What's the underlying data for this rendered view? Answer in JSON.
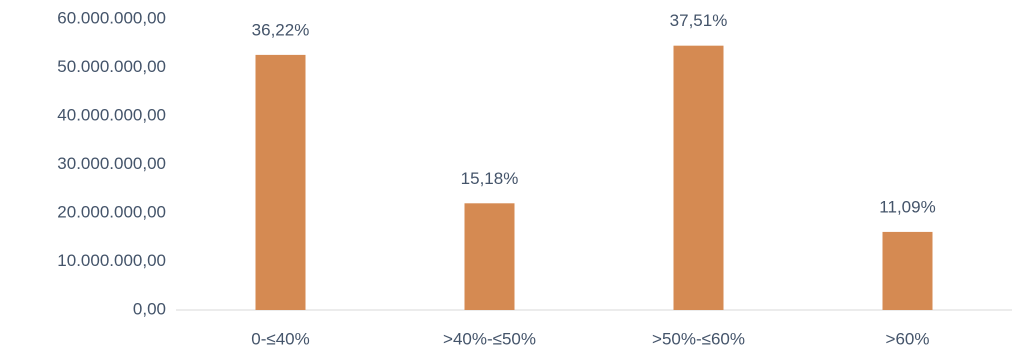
{
  "chart_data": {
    "type": "bar",
    "categories": [
      "0-≤40%",
      ">40%-≤50%",
      ">50%-≤60%",
      ">60%"
    ],
    "values": [
      52600000,
      22000000,
      54500000,
      16100000
    ],
    "percent_labels": [
      "36,22%",
      "15,18%",
      "37,51%",
      "11,09%"
    ],
    "color": "#d58a52",
    "ylim": [
      0,
      60000000
    ],
    "yticks": [
      {
        "value": 0,
        "label": "0,00"
      },
      {
        "value": 10000000,
        "label": "10.000.000,00"
      },
      {
        "value": 20000000,
        "label": "20.000.000,00"
      },
      {
        "value": 30000000,
        "label": "30.000.000,00"
      },
      {
        "value": 40000000,
        "label": "40.000.000,00"
      },
      {
        "value": 50000000,
        "label": "50.000.000,00"
      },
      {
        "value": 60000000,
        "label": "60.000.000,00"
      }
    ],
    "grid": false
  }
}
